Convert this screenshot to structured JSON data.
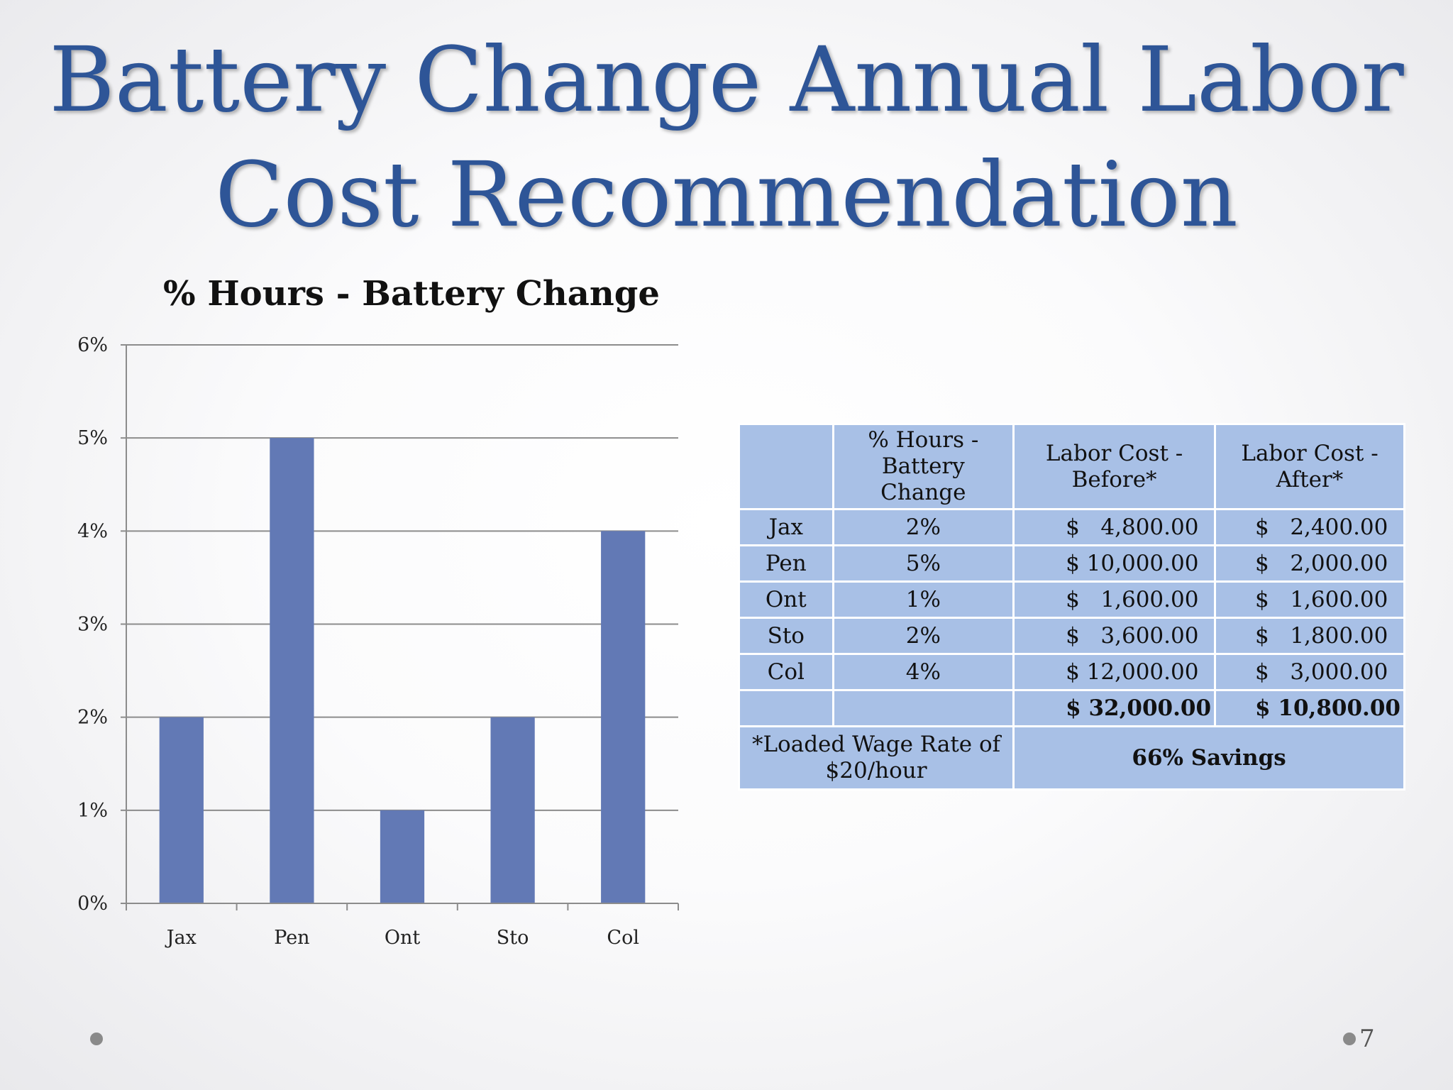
{
  "slide": {
    "title_line1": "Battery Change Annual Labor",
    "title_line2": "Cost Recommendation",
    "page_number": "7"
  },
  "chart_data": {
    "type": "bar",
    "title": "% Hours - Battery Change",
    "categories": [
      "Jax",
      "Pen",
      "Ont",
      "Sto",
      "Col"
    ],
    "values": [
      2,
      5,
      1,
      2,
      4
    ],
    "ylim": [
      0,
      6
    ],
    "yticks": [
      "0%",
      "1%",
      "2%",
      "3%",
      "4%",
      "5%",
      "6%"
    ],
    "xlabel": "",
    "ylabel": "",
    "grid": true,
    "bar_color": "#6279b5"
  },
  "table": {
    "headers": [
      "",
      "% Hours - Battery Change",
      "Labor Cost - Before*",
      "Labor Cost - After*"
    ],
    "rows": [
      {
        "site": "Jax",
        "pct": "2%",
        "before": "$   4,800.00",
        "after": "$   2,400.00"
      },
      {
        "site": "Pen",
        "pct": "5%",
        "before": "$ 10,000.00",
        "after": "$   2,000.00"
      },
      {
        "site": "Ont",
        "pct": "1%",
        "before": "$   1,600.00",
        "after": "$   1,600.00"
      },
      {
        "site": "Sto",
        "pct": "2%",
        "before": "$   3,600.00",
        "after": "$   1,800.00"
      },
      {
        "site": "Col",
        "pct": "4%",
        "before": "$ 12,000.00",
        "after": "$   3,000.00"
      }
    ],
    "total_before": "$ 32,000.00",
    "total_after": "$ 10,800.00",
    "footnote": "*Loaded Wage Rate of $20/hour",
    "savings": "66% Savings"
  }
}
